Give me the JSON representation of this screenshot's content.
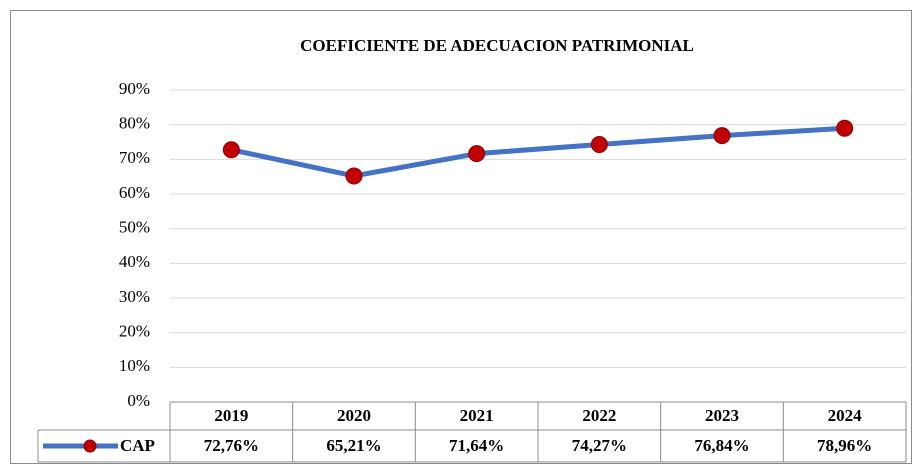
{
  "chart_data": {
    "type": "line",
    "title": "COEFICIENTE DE ADECUACION PATRIMONIAL",
    "categories": [
      "2019",
      "2020",
      "2021",
      "2022",
      "2023",
      "2024"
    ],
    "series": [
      {
        "name": "CAP",
        "color": "#4472c4",
        "marker_color": "#c00000",
        "values": [
          72.76,
          65.21,
          71.64,
          74.27,
          76.84,
          78.96
        ],
        "value_labels": [
          "72,76%",
          "65,21%",
          "71,64%",
          "74,27%",
          "76,84%",
          "78,96%"
        ]
      }
    ],
    "ylim": [
      0,
      90
    ],
    "yticks": [
      {
        "value": 0,
        "label": "0%"
      },
      {
        "value": 10,
        "label": "10%"
      },
      {
        "value": 20,
        "label": "20%"
      },
      {
        "value": 30,
        "label": "30%"
      },
      {
        "value": 40,
        "label": "40%"
      },
      {
        "value": 50,
        "label": "50%"
      },
      {
        "value": 60,
        "label": "60%"
      },
      {
        "value": 70,
        "label": "70%"
      },
      {
        "value": 80,
        "label": "80%"
      },
      {
        "value": 90,
        "label": "90%"
      }
    ],
    "grid": true,
    "legend": "table"
  }
}
